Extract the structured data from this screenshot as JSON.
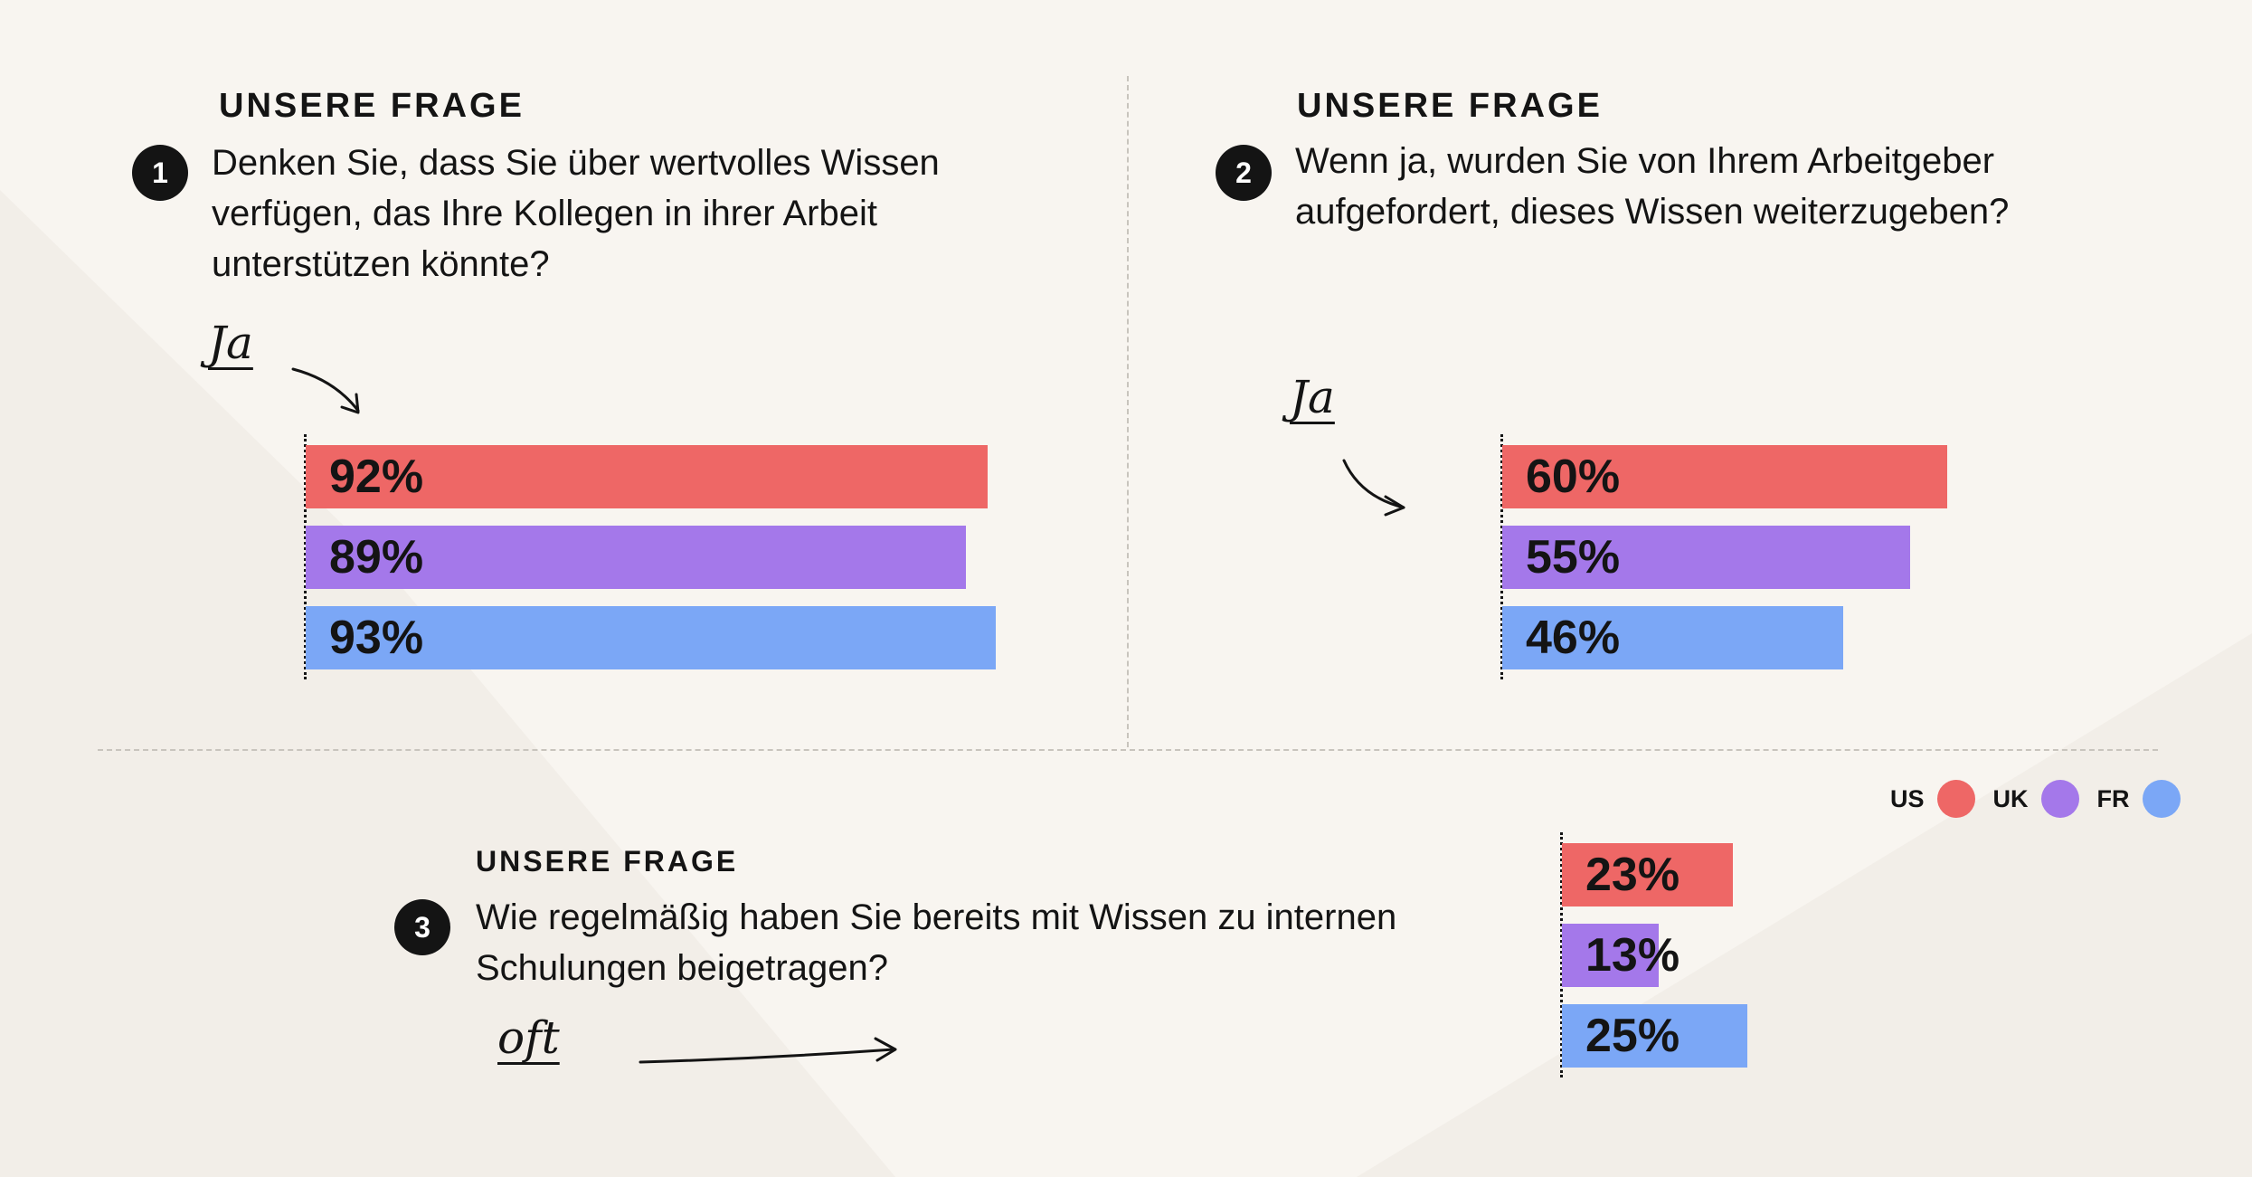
{
  "legend": [
    {
      "label": "US",
      "color": "#ee6766"
    },
    {
      "label": "UK",
      "color": "#a478ea"
    },
    {
      "label": "FR",
      "color": "#7ba7f6"
    }
  ],
  "questions": [
    {
      "label": "UNSERE FRAGE",
      "number": "1",
      "text": "Denken Sie, dass Sie über wertvolles Wissen verfügen, das Ihre Kollegen in ihrer Arbeit unterstützen könnte?",
      "annotation": "Ja"
    },
    {
      "label": "UNSERE FRAGE",
      "number": "2",
      "text": "Wenn ja, wurden Sie von Ihrem Arbeitgeber aufgefordert, dieses Wissen weiterzugeben?",
      "annotation": "Ja"
    },
    {
      "label": "UNSERE FRAGE",
      "number": "3",
      "text": "Wie regelmäßig haben Sie bereits mit Wissen zu internen Schulungen beigetragen?",
      "annotation": "oft"
    }
  ],
  "chart_data": [
    {
      "type": "bar",
      "orientation": "horizontal",
      "categories": [
        "US",
        "UK",
        "FR"
      ],
      "values": [
        92,
        89,
        93
      ],
      "value_labels": [
        "92%",
        "89%",
        "93%"
      ],
      "colors": [
        "#ee6766",
        "#a478ea",
        "#7ba7f6"
      ],
      "xlim": [
        0,
        100
      ]
    },
    {
      "type": "bar",
      "orientation": "horizontal",
      "categories": [
        "US",
        "UK",
        "FR"
      ],
      "values": [
        60,
        55,
        46
      ],
      "value_labels": [
        "60%",
        "55%",
        "46%"
      ],
      "colors": [
        "#ee6766",
        "#a478ea",
        "#7ba7f6"
      ],
      "xlim": [
        0,
        100
      ]
    },
    {
      "type": "bar",
      "orientation": "horizontal",
      "categories": [
        "US",
        "UK",
        "FR"
      ],
      "values": [
        23,
        13,
        25
      ],
      "value_labels": [
        "23%",
        "13%",
        "25%"
      ],
      "colors": [
        "#ee6766",
        "#a478ea",
        "#7ba7f6"
      ],
      "xlim": [
        0,
        100
      ]
    }
  ]
}
